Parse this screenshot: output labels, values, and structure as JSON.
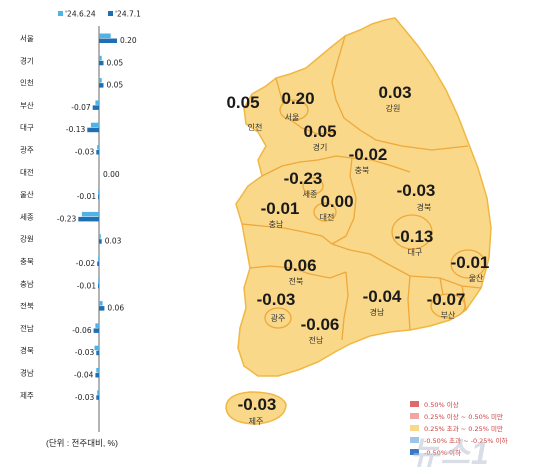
{
  "chart_data": [
    {
      "type": "bar",
      "orientation": "horizontal",
      "categories": [
        "서울",
        "경기",
        "인천",
        "부산",
        "대구",
        "광주",
        "대전",
        "울산",
        "세종",
        "강원",
        "충북",
        "충남",
        "전북",
        "전남",
        "경북",
        "경남",
        "제주"
      ],
      "series": [
        {
          "name": "'24.6.24",
          "color": "#4fb3e6",
          "values": [
            0.13,
            0.03,
            0.03,
            -0.04,
            -0.09,
            -0.02,
            0.0,
            -0.01,
            -0.19,
            0.02,
            -0.01,
            -0.01,
            0.04,
            -0.04,
            -0.05,
            -0.03,
            -0.02
          ]
        },
        {
          "name": "'24.7.1",
          "color": "#1f6fb5",
          "values": [
            0.2,
            0.05,
            0.05,
            -0.07,
            -0.13,
            -0.03,
            0.0,
            -0.01,
            -0.23,
            0.03,
            -0.02,
            -0.01,
            0.06,
            -0.06,
            -0.03,
            -0.04,
            -0.03
          ]
        }
      ],
      "labels": [
        "0.20",
        "0.05",
        "0.05",
        "-0.07",
        "-0.13",
        "-0.03",
        "0.00",
        "-0.01",
        "-0.23",
        "0.03",
        "-0.02",
        "-0.01",
        "0.06",
        "-0.06",
        "-0.03",
        "-0.04",
        "-0.03"
      ],
      "xlim": [
        -0.25,
        0.25
      ],
      "note": "(단위 : 전주대비, %)"
    },
    {
      "type": "map",
      "regions": [
        {
          "name": "인천",
          "value": "0.05"
        },
        {
          "name": "서울",
          "value": "0.20"
        },
        {
          "name": "경기",
          "value": "0.05"
        },
        {
          "name": "강원",
          "value": "0.03"
        },
        {
          "name": "충북",
          "value": "-0.02"
        },
        {
          "name": "세종",
          "value": "-0.23"
        },
        {
          "name": "대전",
          "value": "0.00"
        },
        {
          "name": "충남",
          "value": "-0.01"
        },
        {
          "name": "경북",
          "value": "-0.03"
        },
        {
          "name": "대구",
          "value": "-0.13"
        },
        {
          "name": "울산",
          "value": "-0.01"
        },
        {
          "name": "전북",
          "value": "0.06"
        },
        {
          "name": "광주",
          "value": "-0.03"
        },
        {
          "name": "경남",
          "value": "-0.04"
        },
        {
          "name": "부산",
          "value": "-0.07"
        },
        {
          "name": "전남",
          "value": "-0.06"
        },
        {
          "name": "제주",
          "value": "-0.03"
        }
      ],
      "fill_color": "#f9d88a",
      "legend": [
        {
          "label": "0.50% 이상",
          "color": "#e06a6a"
        },
        {
          "label": "0.25% 이상 ~ 0.50% 미만",
          "color": "#f0a4a4"
        },
        {
          "label": "0.25% 초과 ~ 0.25% 미만",
          "color": "#f9d88a"
        },
        {
          "label": "-0.50% 초과 ~ -0.25% 이하",
          "color": "#9ec4e8"
        },
        {
          "label": "-0.50% 이하",
          "color": "#3b78c4"
        }
      ]
    }
  ],
  "watermark": "뉴스1"
}
